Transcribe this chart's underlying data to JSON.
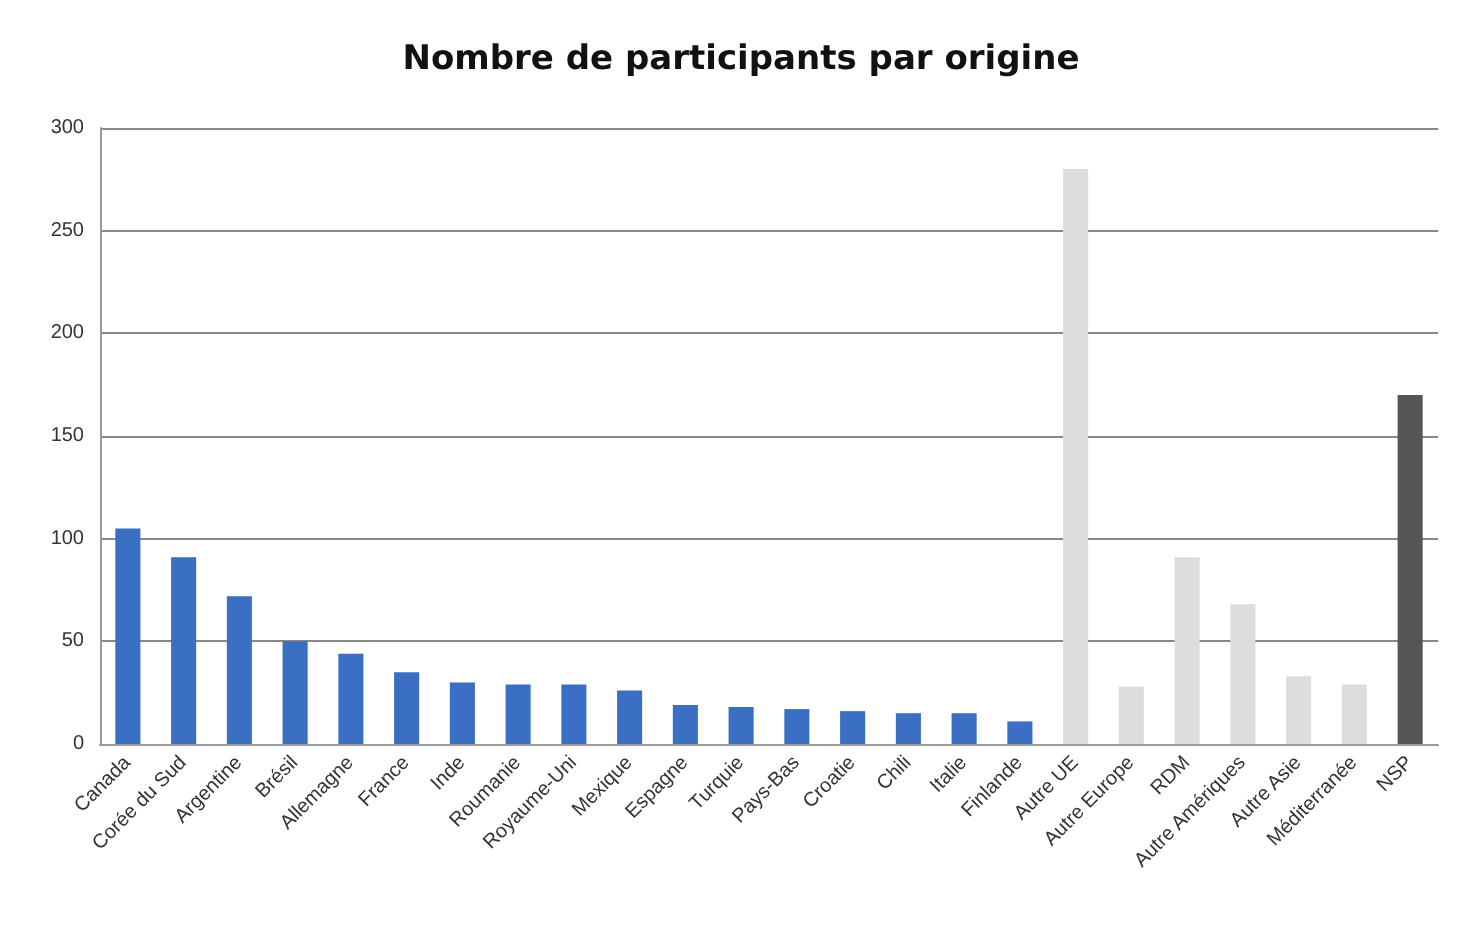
{
  "chart_data": {
    "type": "bar",
    "title": "Nombre de participants par origine",
    "categories": [
      "Canada",
      "Corée du Sud",
      "Argentine",
      "Brésil",
      "Allemagne",
      "France",
      "Inde",
      "Roumanie",
      "Royaume-Uni",
      "Mexique",
      "Espagne",
      "Turquie",
      "Pays-Bas",
      "Croatie",
      "Chili",
      "Italie",
      "Finlande",
      "Autre UE",
      "Autre Europe",
      "RDM",
      "Autre Amériques",
      "Autre Asie",
      "Méditerranée",
      "NSP"
    ],
    "values": [
      105,
      91,
      72,
      50,
      44,
      35,
      30,
      29,
      29,
      26,
      19,
      18,
      17,
      16,
      15,
      15,
      11,
      280,
      28,
      91,
      68,
      33,
      29,
      170
    ],
    "colors": [
      "#3a6fc4",
      "#3a6fc4",
      "#3a6fc4",
      "#3a6fc4",
      "#3a6fc4",
      "#3a6fc4",
      "#3a6fc4",
      "#3a6fc4",
      "#3a6fc4",
      "#3a6fc4",
      "#3a6fc4",
      "#3a6fc4",
      "#3a6fc4",
      "#3a6fc4",
      "#3a6fc4",
      "#3a6fc4",
      "#3a6fc4",
      "#dddddd",
      "#dddddd",
      "#dddddd",
      "#dddddd",
      "#dddddd",
      "#dddddd",
      "#555555"
    ],
    "ylim": [
      0,
      300
    ],
    "yticks": [
      0,
      50,
      100,
      150,
      200,
      250,
      300
    ],
    "grid": "y"
  }
}
